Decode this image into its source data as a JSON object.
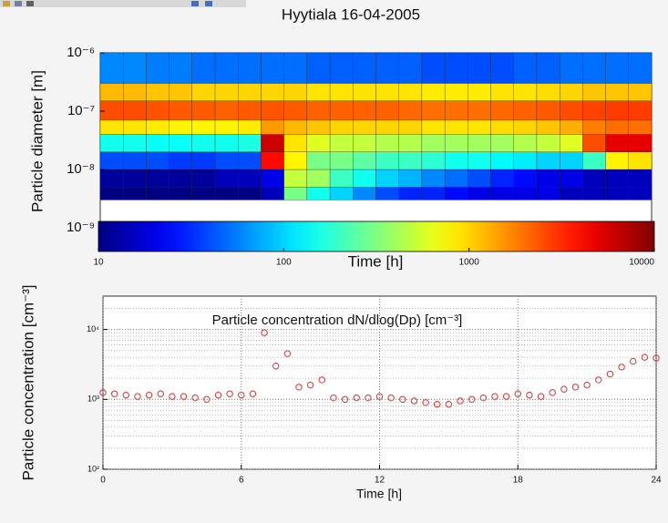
{
  "chart_data": [
    {
      "type": "heatmap",
      "title": "Hyytiala 16-04-2005",
      "ylabel": "Particle diameter [m]",
      "xlabel": "Time [h]",
      "xlim": [
        0,
        24
      ],
      "ylim": [
        1e-09,
        1e-06
      ],
      "log_y": true,
      "colormap": "jet",
      "yticks": [
        {
          "value": 1e-09,
          "label": "10⁻⁹"
        },
        {
          "value": 1e-08,
          "label": "10⁻⁸"
        },
        {
          "value": 1e-07,
          "label": "10⁻⁷"
        },
        {
          "value": 1e-06,
          "label": "10⁻⁶"
        }
      ],
      "x_edges": [
        0,
        1,
        2,
        3,
        4,
        5,
        6,
        7,
        8,
        9,
        10,
        11,
        12,
        13,
        14,
        15,
        16,
        17,
        18,
        19,
        20,
        21,
        22,
        23,
        24
      ],
      "y_edges": [
        3e-09,
        5e-09,
        1e-08,
        2e-08,
        4e-08,
        7e-08,
        1.5e-07,
        3e-07,
        1e-06
      ],
      "z": [
        [
          10,
          10,
          10,
          10,
          10,
          10,
          10,
          15,
          300,
          150,
          100,
          60,
          40,
          30,
          30,
          25,
          20,
          20,
          20,
          20,
          15,
          15,
          15,
          15
        ],
        [
          12,
          12,
          12,
          12,
          12,
          15,
          15,
          20,
          500,
          400,
          200,
          150,
          100,
          80,
          60,
          50,
          40,
          30,
          25,
          20,
          20,
          15,
          15,
          15
        ],
        [
          40,
          40,
          40,
          35,
          35,
          40,
          40,
          4000,
          800,
          300,
          300,
          250,
          200,
          200,
          180,
          150,
          150,
          130,
          120,
          100,
          100,
          200,
          800,
          900
        ],
        [
          150,
          150,
          140,
          140,
          150,
          150,
          160,
          6000,
          900,
          600,
          500,
          500,
          450,
          450,
          400,
          400,
          400,
          400,
          450,
          500,
          600,
          2500,
          5000,
          5000
        ],
        [
          900,
          900,
          850,
          800,
          800,
          800,
          850,
          1500,
          1200,
          1100,
          1000,
          1000,
          1000,
          1000,
          900,
          900,
          900,
          950,
          1000,
          1100,
          1300,
          1800,
          2000,
          2000
        ],
        [
          2500,
          2500,
          2400,
          2300,
          2300,
          2200,
          2300,
          2400,
          2300,
          2200,
          2200,
          2200,
          2200,
          2100,
          2000,
          2000,
          2000,
          2100,
          2200,
          2300,
          2500,
          2700,
          2800,
          2800
        ],
        [
          1200,
          1200,
          1100,
          1100,
          1000,
          1000,
          1000,
          1000,
          1000,
          900,
          900,
          900,
          900,
          900,
          850,
          850,
          850,
          900,
          900,
          950,
          1000,
          1100,
          1100,
          1100
        ],
        [
          60,
          60,
          55,
          55,
          50,
          50,
          50,
          50,
          50,
          45,
          45,
          45,
          45,
          45,
          40,
          40,
          40,
          40,
          45,
          45,
          50,
          50,
          50,
          50
        ]
      ],
      "colorbar": {
        "lim": [
          10,
          10000
        ],
        "log": true,
        "ticks": [
          10,
          100,
          1000,
          10000
        ]
      }
    },
    {
      "type": "scatter",
      "ylabel": "Particle concentration [cm⁻³]",
      "xlabel": "Time [h]",
      "annotation": "Particle concentration dN/dlog(Dp) [cm⁻³]",
      "color": "#e03030",
      "xlim": [
        0,
        24
      ],
      "xticks": [
        0,
        6,
        12,
        18,
        24
      ],
      "ylim": [
        100,
        30000
      ],
      "log_y": true,
      "grid": true,
      "yticks": [
        {
          "value": 100,
          "label": "10²"
        },
        {
          "value": 1000,
          "label": "10³"
        },
        {
          "value": 10000,
          "label": "10⁴"
        }
      ],
      "x": [
        0,
        0.5,
        1,
        1.5,
        2,
        2.5,
        3,
        3.5,
        4,
        4.5,
        5,
        5.5,
        6,
        6.5,
        7,
        7.5,
        8,
        8.5,
        9,
        9.5,
        10,
        10.5,
        11,
        11.5,
        12,
        12.5,
        13,
        13.5,
        14,
        14.5,
        15,
        15.5,
        16,
        16.5,
        17,
        17.5,
        18,
        18.5,
        19,
        19.5,
        20,
        20.5,
        21,
        21.5,
        22,
        22.5,
        23,
        23.5,
        24
      ],
      "values": [
        1250,
        1200,
        1150,
        1100,
        1150,
        1200,
        1100,
        1100,
        1050,
        1000,
        1150,
        1200,
        1150,
        1200,
        9000,
        3000,
        4500,
        1500,
        1600,
        1900,
        1050,
        1000,
        1050,
        1050,
        1100,
        1050,
        1000,
        950,
        900,
        850,
        850,
        950,
        1000,
        1050,
        1100,
        1100,
        1200,
        1150,
        1100,
        1250,
        1400,
        1500,
        1600,
        1900,
        2300,
        2900,
        3500,
        4000,
        3900
      ]
    }
  ]
}
